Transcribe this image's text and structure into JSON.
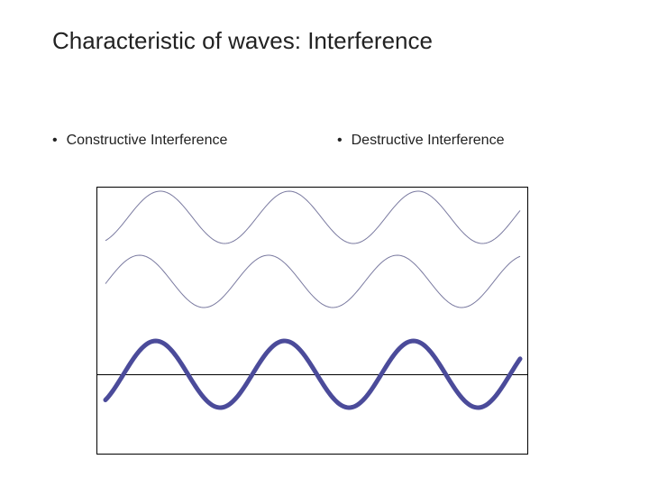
{
  "title": "Characteristic of waves: Interference",
  "bullets": [
    "Constructive Interference",
    "Destructive Interference"
  ]
}
